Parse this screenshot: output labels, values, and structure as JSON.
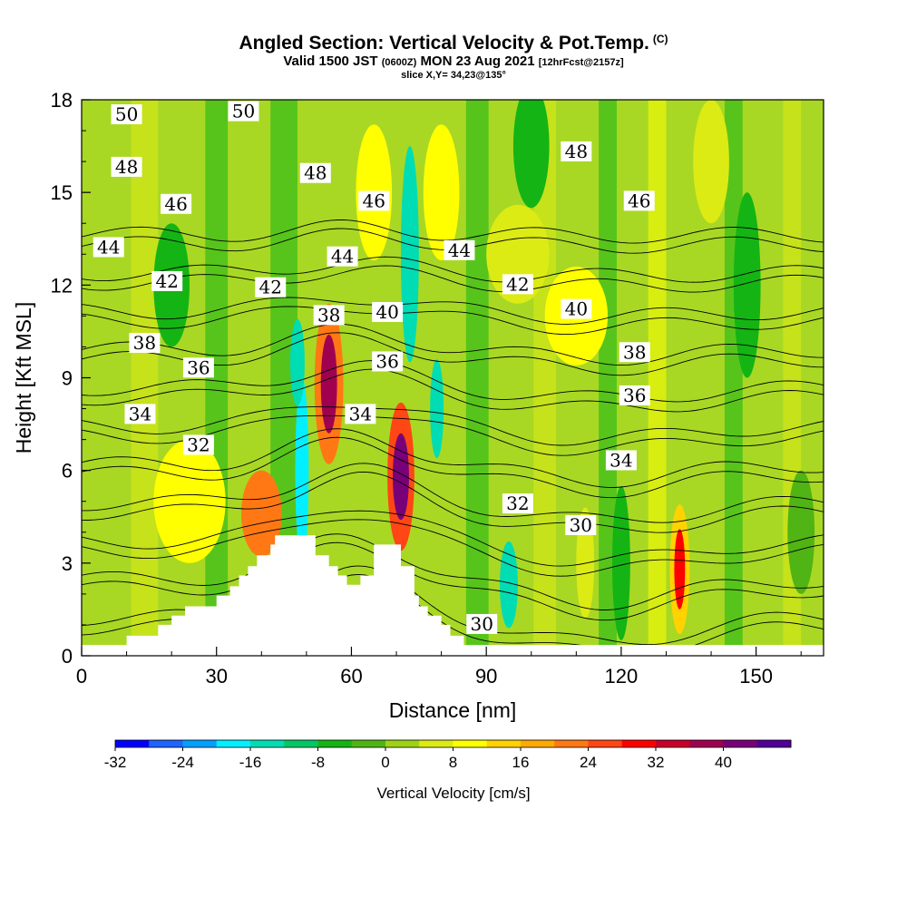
{
  "title": {
    "main": "Angled Section: Vertical Velocity & Pot.Temp.",
    "units_tag": "(C)",
    "valid_prefix": "Valid 1500 JST",
    "valid_utc": "(0600Z)",
    "valid_date": "MON 23 Aug 2021",
    "fcst": "[12hrFcst@2157z]",
    "slice": "slice X,Y= 34,23@135°"
  },
  "colors": {
    "background": "#ffffff",
    "contour": "#000000",
    "terrain": "#ffffff",
    "field_base": "#a8d824"
  },
  "chart_data": {
    "type": "heatmap",
    "xlabel": "Distance [nm]",
    "ylabel": "Height [Kft MSL]",
    "xlim": [
      0,
      165
    ],
    "ylim": [
      0,
      18
    ],
    "x_ticks": [
      0,
      30,
      60,
      90,
      120,
      150
    ],
    "y_ticks": [
      0,
      3,
      6,
      9,
      12,
      15,
      18
    ],
    "terrain_profile": [
      {
        "x": 0,
        "h": 0.35
      },
      {
        "x": 10,
        "h": 0.35
      },
      {
        "x": 10,
        "h": 0.65
      },
      {
        "x": 17,
        "h": 0.65
      },
      {
        "x": 17,
        "h": 1.0
      },
      {
        "x": 20,
        "h": 1.0
      },
      {
        "x": 20,
        "h": 1.3
      },
      {
        "x": 23,
        "h": 1.3
      },
      {
        "x": 23,
        "h": 1.6
      },
      {
        "x": 30,
        "h": 1.6
      },
      {
        "x": 30,
        "h": 1.95
      },
      {
        "x": 33,
        "h": 1.95
      },
      {
        "x": 33,
        "h": 2.25
      },
      {
        "x": 35,
        "h": 2.25
      },
      {
        "x": 35,
        "h": 2.6
      },
      {
        "x": 37,
        "h": 2.6
      },
      {
        "x": 37,
        "h": 2.9
      },
      {
        "x": 39,
        "h": 2.9
      },
      {
        "x": 39,
        "h": 3.25
      },
      {
        "x": 42,
        "h": 3.25
      },
      {
        "x": 42,
        "h": 3.6
      },
      {
        "x": 43,
        "h": 3.6
      },
      {
        "x": 43,
        "h": 3.9
      },
      {
        "x": 52,
        "h": 3.9
      },
      {
        "x": 52,
        "h": 3.25
      },
      {
        "x": 55,
        "h": 3.25
      },
      {
        "x": 55,
        "h": 2.9
      },
      {
        "x": 57,
        "h": 2.9
      },
      {
        "x": 57,
        "h": 2.6
      },
      {
        "x": 59,
        "h": 2.6
      },
      {
        "x": 59,
        "h": 2.3
      },
      {
        "x": 62,
        "h": 2.3
      },
      {
        "x": 62,
        "h": 2.6
      },
      {
        "x": 65,
        "h": 2.6
      },
      {
        "x": 65,
        "h": 3.6
      },
      {
        "x": 71,
        "h": 3.6
      },
      {
        "x": 71,
        "h": 2.9
      },
      {
        "x": 74,
        "h": 2.9
      },
      {
        "x": 74,
        "h": 1.95
      },
      {
        "x": 75,
        "h": 1.95
      },
      {
        "x": 75,
        "h": 1.6
      },
      {
        "x": 77,
        "h": 1.6
      },
      {
        "x": 77,
        "h": 1.3
      },
      {
        "x": 80,
        "h": 1.3
      },
      {
        "x": 80,
        "h": 1.0
      },
      {
        "x": 82,
        "h": 1.0
      },
      {
        "x": 82,
        "h": 0.65
      },
      {
        "x": 85,
        "h": 0.65
      },
      {
        "x": 85,
        "h": 0.35
      },
      {
        "x": 165,
        "h": 0.35
      }
    ],
    "vertical_velocity_features": [
      {
        "x": 55,
        "h": 8.8,
        "wx": 1.8,
        "wh": 1.6,
        "value": 36
      },
      {
        "x": 55,
        "h": 8.8,
        "wx": 3.2,
        "wh": 2.6,
        "value": 20
      },
      {
        "x": 71,
        "h": 5.8,
        "wx": 1.8,
        "wh": 1.4,
        "value": 40
      },
      {
        "x": 71,
        "h": 5.8,
        "wx": 3.0,
        "wh": 2.4,
        "value": 24
      },
      {
        "x": 40,
        "h": 4.6,
        "wx": 4.5,
        "wh": 1.4,
        "value": 22
      },
      {
        "x": 24,
        "h": 5.0,
        "wx": 8.0,
        "wh": 2.0,
        "value": 10
      },
      {
        "x": 133,
        "h": 2.8,
        "wx": 1.2,
        "wh": 1.3,
        "value": 30
      },
      {
        "x": 133,
        "h": 2.8,
        "wx": 2.2,
        "wh": 2.1,
        "value": 14
      },
      {
        "x": 49,
        "h": 6.0,
        "wx": 1.5,
        "wh": 3.0,
        "value": -20
      },
      {
        "x": 48,
        "h": 9.5,
        "wx": 1.6,
        "wh": 1.4,
        "value": -16
      },
      {
        "x": 73,
        "h": 13.0,
        "wx": 2.0,
        "wh": 3.5,
        "value": -14
      },
      {
        "x": 79,
        "h": 8.0,
        "wx": 1.5,
        "wh": 1.6,
        "value": -14
      },
      {
        "x": 95,
        "h": 2.3,
        "wx": 2.0,
        "wh": 1.4,
        "value": -14
      },
      {
        "x": 65,
        "h": 15.0,
        "wx": 4.0,
        "wh": 2.2,
        "value": 10
      },
      {
        "x": 80,
        "h": 15.0,
        "wx": 4.0,
        "wh": 2.2,
        "value": 8
      },
      {
        "x": 97,
        "h": 13.0,
        "wx": 7.0,
        "wh": 1.6,
        "value": 6
      },
      {
        "x": 110,
        "h": 11.0,
        "wx": 7.0,
        "wh": 1.6,
        "value": 8
      },
      {
        "x": 140,
        "h": 16.0,
        "wx": 4.0,
        "wh": 2.0,
        "value": 6
      },
      {
        "x": 20,
        "h": 12.0,
        "wx": 4.0,
        "wh": 2.0,
        "value": -6
      },
      {
        "x": 100,
        "h": 16.5,
        "wx": 4.0,
        "wh": 2.0,
        "value": -6
      },
      {
        "x": 120,
        "h": 3.0,
        "wx": 2.0,
        "wh": 2.5,
        "value": -6
      },
      {
        "x": 148,
        "h": 12.0,
        "wx": 3.0,
        "wh": 3.0,
        "value": -5
      },
      {
        "x": 160,
        "h": 4.0,
        "wx": 3.0,
        "wh": 2.0,
        "value": -4
      },
      {
        "x": 112,
        "h": 3.0,
        "wx": 2.0,
        "wh": 1.8,
        "value": 4
      }
    ],
    "potential_temperature_contours": {
      "levels": [
        30,
        32,
        34,
        36,
        38,
        40,
        42,
        44,
        46,
        48,
        50
      ],
      "labels": [
        {
          "value": "50",
          "x": 10,
          "y": 17.5
        },
        {
          "value": "50",
          "x": 36,
          "y": 17.6
        },
        {
          "value": "48",
          "x": 10,
          "y": 15.8
        },
        {
          "value": "48",
          "x": 52,
          "y": 15.6
        },
        {
          "value": "48",
          "x": 110,
          "y": 16.3
        },
        {
          "value": "46",
          "x": 21,
          "y": 14.6
        },
        {
          "value": "46",
          "x": 65,
          "y": 14.7
        },
        {
          "value": "46",
          "x": 124,
          "y": 14.7
        },
        {
          "value": "44",
          "x": 6,
          "y": 13.2
        },
        {
          "value": "44",
          "x": 58,
          "y": 12.9
        },
        {
          "value": "44",
          "x": 84,
          "y": 13.1
        },
        {
          "value": "42",
          "x": 19,
          "y": 12.1
        },
        {
          "value": "42",
          "x": 42,
          "y": 11.9
        },
        {
          "value": "42",
          "x": 97,
          "y": 12.0
        },
        {
          "value": "40",
          "x": 68,
          "y": 11.1
        },
        {
          "value": "40",
          "x": 110,
          "y": 11.2
        },
        {
          "value": "38",
          "x": 55,
          "y": 11.0
        },
        {
          "value": "38",
          "x": 14,
          "y": 10.1
        },
        {
          "value": "38",
          "x": 123,
          "y": 9.8
        },
        {
          "value": "36",
          "x": 26,
          "y": 9.3
        },
        {
          "value": "36",
          "x": 68,
          "y": 9.5
        },
        {
          "value": "36",
          "x": 123,
          "y": 8.4
        },
        {
          "value": "34",
          "x": 13,
          "y": 7.8
        },
        {
          "value": "34",
          "x": 62,
          "y": 7.8
        },
        {
          "value": "34",
          "x": 120,
          "y": 6.3
        },
        {
          "value": "32",
          "x": 26,
          "y": 6.8
        },
        {
          "value": "32",
          "x": 97,
          "y": 4.9
        },
        {
          "value": "30",
          "x": 111,
          "y": 4.2
        },
        {
          "value": "30",
          "x": 89,
          "y": 1.0
        }
      ]
    },
    "colorbar": {
      "label": "Vertical Velocity [cm/s]",
      "ticks": [
        "-32",
        "-24",
        "-16",
        "-8",
        "0",
        "8",
        "16",
        "24",
        "32",
        "40"
      ],
      "min": -32,
      "max": 48,
      "step": 4,
      "colors": [
        "#0000ff",
        "#1e64ff",
        "#00a0ff",
        "#00f0ff",
        "#00dcb4",
        "#00c864",
        "#14b414",
        "#50b414",
        "#a0d214",
        "#dceb14",
        "#ffff00",
        "#ffd200",
        "#ffaa00",
        "#ff7814",
        "#ff4614",
        "#ff0000",
        "#c80028",
        "#a00050",
        "#780078",
        "#500096"
      ]
    }
  }
}
